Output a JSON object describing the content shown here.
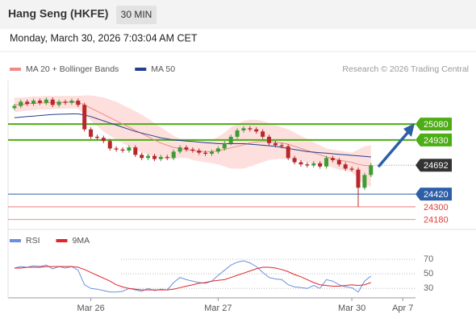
{
  "header": {
    "title": "Hang Seng (HKFE)",
    "interval": "30 MIN",
    "timestamp": "Monday, March 30, 2026 7:03:04 AM CET"
  },
  "chart_data": [
    {
      "type": "candlestick",
      "source": "Research © 2026 Trading Central",
      "xlim": [
        -1,
        63
      ],
      "ylim": [
        24110,
        25490
      ],
      "up_color": "#3f9b35",
      "down_color": "#b8272a",
      "open": [
        25230,
        25250,
        25290,
        25270,
        25300,
        25280,
        25310,
        25260,
        25290,
        25280,
        25300,
        25260,
        25030,
        24960,
        24950,
        24920,
        24850,
        24840,
        24830,
        24860,
        24790,
        24760,
        24780,
        24750,
        24770,
        24760,
        24820,
        24860,
        24840,
        24830,
        24810,
        24800,
        24820,
        24850,
        24900,
        24960,
        25020,
        25040,
        25030,
        25010,
        24960,
        24900,
        24880,
        24870,
        24760,
        24720,
        24700,
        24690,
        24710,
        24680,
        24760,
        24740,
        24700,
        24660,
        24650,
        24480,
        24600
      ],
      "high": [
        25270,
        25310,
        25310,
        25320,
        25320,
        25330,
        25330,
        25310,
        25310,
        25320,
        25320,
        25280,
        25050,
        24980,
        24970,
        24940,
        24870,
        24860,
        24880,
        24880,
        24810,
        24800,
        24800,
        24790,
        24790,
        24840,
        24880,
        24880,
        24860,
        24850,
        24830,
        24840,
        24870,
        24920,
        24980,
        25040,
        25060,
        25060,
        25050,
        25030,
        24980,
        24920,
        24900,
        24890,
        24780,
        24740,
        24720,
        24730,
        24730,
        24780,
        24780,
        24760,
        24720,
        24680,
        24670,
        24620,
        24712
      ],
      "low": [
        25210,
        25230,
        25250,
        25250,
        25260,
        25260,
        25240,
        25240,
        25260,
        25260,
        25240,
        25010,
        24940,
        24930,
        24900,
        24830,
        24820,
        24810,
        24810,
        24770,
        24740,
        24740,
        24730,
        24730,
        24740,
        24740,
        24800,
        24820,
        24810,
        24790,
        24780,
        24780,
        24800,
        24830,
        24880,
        24940,
        25000,
        25010,
        24990,
        24940,
        24880,
        24860,
        24850,
        24740,
        24700,
        24680,
        24670,
        24670,
        24660,
        24660,
        24720,
        24680,
        24640,
        24630,
        24300,
        24460,
        24580
      ],
      "close": [
        25250,
        25290,
        25270,
        25300,
        25280,
        25310,
        25260,
        25290,
        25280,
        25300,
        25260,
        25030,
        24960,
        24950,
        24920,
        24850,
        24840,
        24830,
        24860,
        24790,
        24760,
        24780,
        24750,
        24770,
        24760,
        24820,
        24860,
        24840,
        24830,
        24810,
        24800,
        24820,
        24850,
        24900,
        24960,
        25020,
        25040,
        25030,
        25010,
        24960,
        24900,
        24880,
        24870,
        24760,
        24720,
        24700,
        24690,
        24710,
        24680,
        24760,
        24740,
        24700,
        24660,
        24650,
        24480,
        24600,
        24692
      ],
      "series": [
        {
          "name": "MA 20 + Bollinger Bands",
          "color": "#f08a84",
          "band_color": "#fde0de",
          "values": [
            25260,
            25265,
            25270,
            25275,
            25278,
            25280,
            25282,
            25284,
            25285,
            25286,
            25285,
            25260,
            25230,
            25200,
            25170,
            25140,
            25110,
            25080,
            25050,
            25020,
            24990,
            24960,
            24930,
            24900,
            24880,
            24860,
            24850,
            24840,
            24830,
            24825,
            24820,
            24820,
            24830,
            24840,
            24855,
            24870,
            24885,
            24900,
            24910,
            24915,
            24915,
            24910,
            24900,
            24890,
            24870,
            24850,
            24830,
            24810,
            24790,
            24770,
            24755,
            24740,
            24730,
            24720,
            24700,
            24690,
            24685
          ],
          "upper": [
            25330,
            25330,
            25335,
            25340,
            25340,
            25345,
            25345,
            25345,
            25345,
            25345,
            25345,
            25350,
            25350,
            25340,
            25330,
            25310,
            25290,
            25260,
            25230,
            25200,
            25170,
            25130,
            25090,
            25050,
            25010,
            24970,
            24940,
            24920,
            24920,
            24920,
            24920,
            24930,
            24960,
            25000,
            25050,
            25080,
            25110,
            25120,
            25120,
            25110,
            25090,
            25070,
            25050,
            25030,
            25000,
            24970,
            24940,
            24910,
            24880,
            24850,
            24840,
            24830,
            24820,
            24810,
            24840,
            24870,
            24880
          ],
          "lower": [
            25190,
            25200,
            25205,
            25210,
            25216,
            25215,
            25219,
            25223,
            25225,
            25227,
            25225,
            25170,
            25110,
            25060,
            25010,
            24970,
            24930,
            24900,
            24870,
            24840,
            24810,
            24790,
            24770,
            24750,
            24750,
            24750,
            24760,
            24760,
            24740,
            24730,
            24720,
            24710,
            24700,
            24680,
            24660,
            24660,
            24660,
            24680,
            24700,
            24720,
            24740,
            24750,
            24750,
            24750,
            24740,
            24730,
            24720,
            24710,
            24700,
            24690,
            24670,
            24650,
            24640,
            24630,
            24560,
            24510,
            24490
          ]
        },
        {
          "name": "MA 50",
          "color": "#23408e",
          "values": [
            25140,
            25145,
            25150,
            25155,
            25160,
            25165,
            25170,
            25172,
            25174,
            25175,
            25175,
            25165,
            25150,
            25130,
            25110,
            25090,
            25070,
            25050,
            25030,
            25010,
            24995,
            24980,
            24965,
            24950,
            24940,
            24930,
            24925,
            24920,
            24915,
            24910,
            24905,
            24900,
            24895,
            24895,
            24895,
            24895,
            24895,
            24890,
            24885,
            24880,
            24875,
            24870,
            24860,
            24850,
            24840,
            24830,
            24820,
            24815,
            24810,
            24805,
            24800,
            24795,
            24790,
            24785,
            24780,
            24775,
            24770
          ]
        }
      ],
      "levels": [
        {
          "value": 25080,
          "color": "#4cad14",
          "boxed": true
        },
        {
          "value": 24930,
          "color": "#4cad14",
          "boxed": true
        },
        {
          "value": 24692,
          "color": "#333333",
          "boxed": true
        },
        {
          "value": 24420,
          "color": "#2d5fa8",
          "boxed": true
        },
        {
          "value": 24300,
          "color": "#e04040",
          "boxed": false
        },
        {
          "value": 24180,
          "color": "#e04040",
          "boxed": false
        }
      ]
    },
    {
      "type": "line",
      "xlim": [
        -1,
        63
      ],
      "ylim": [
        17,
        100
      ],
      "yticks": [
        70,
        50,
        30
      ],
      "xticks": [
        {
          "value": 12,
          "label": "Mar 26"
        },
        {
          "value": 32,
          "label": "Mar 27"
        },
        {
          "value": 53,
          "label": "Mar 30"
        },
        {
          "value": 61,
          "label": "Apr 7"
        }
      ],
      "series": [
        {
          "name": "RSI",
          "color": "#6a8fdc",
          "values": [
            58,
            60,
            59,
            61,
            60,
            62,
            57,
            60,
            58,
            60,
            55,
            35,
            30,
            29,
            27,
            25,
            25,
            26,
            30,
            28,
            26,
            30,
            27,
            29,
            28,
            38,
            45,
            42,
            40,
            38,
            37,
            40,
            48,
            55,
            62,
            66,
            68,
            65,
            60,
            52,
            45,
            43,
            42,
            35,
            32,
            31,
            30,
            34,
            30,
            42,
            40,
            35,
            32,
            31,
            25,
            40,
            47
          ]
        },
        {
          "name": "9MA",
          "color": "#e0262a",
          "values": [
            58,
            58,
            59,
            59,
            59,
            60,
            60,
            60,
            60,
            60,
            59,
            56,
            52,
            48,
            44,
            40,
            35,
            32,
            30,
            29,
            28,
            28,
            28,
            28,
            28,
            29,
            31,
            33,
            35,
            37,
            38,
            40,
            41,
            42,
            45,
            48,
            51,
            54,
            57,
            59,
            59,
            58,
            56,
            53,
            49,
            46,
            42,
            38,
            35,
            34,
            33,
            33,
            34,
            35,
            34,
            35,
            38
          ]
        }
      ]
    }
  ]
}
